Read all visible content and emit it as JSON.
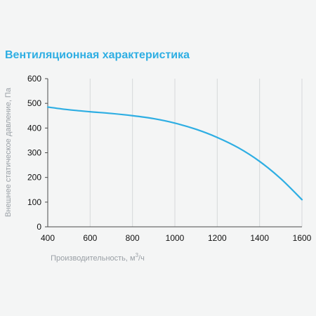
{
  "chart_data": {
    "type": "line",
    "title": "Вентиляционная характеристика",
    "xlabel": "Производительность, м",
    "xlabel_sup": "3",
    "xlabel_suffix": "/ч",
    "ylabel": "Внешнее статическое давление, Па",
    "xlim": [
      400,
      1600
    ],
    "ylim": [
      0,
      600
    ],
    "x_ticks": [
      400,
      600,
      800,
      1000,
      1200,
      1400,
      1600
    ],
    "y_ticks": [
      0,
      100,
      200,
      300,
      400,
      500,
      600
    ],
    "grid": "vertical",
    "series": [
      {
        "color": "#2eaee3",
        "x": [
          400,
          500,
          600,
          700,
          800,
          900,
          1000,
          1100,
          1200,
          1300,
          1400,
          1500,
          1600
        ],
        "y": [
          485,
          474,
          466,
          459,
          450,
          438,
          420,
          395,
          362,
          320,
          265,
          195,
          110
        ]
      }
    ]
  }
}
